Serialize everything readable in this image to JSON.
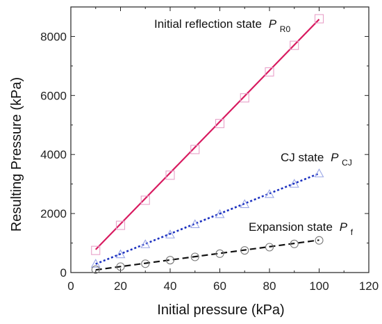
{
  "chart_data": {
    "type": "scatter",
    "xlabel": "Initial pressure (kPa)",
    "ylabel": "Resulting Pressure (kPa)",
    "xlim": [
      0,
      120
    ],
    "ylim": [
      0,
      9000
    ],
    "xticks": [
      "0",
      "20",
      "40",
      "60",
      "80",
      "100",
      "120"
    ],
    "yticks": [
      "0",
      "2000",
      "4000",
      "6000",
      "8000"
    ],
    "grid": false,
    "series": [
      {
        "name": "Initial reflection state",
        "symbol": "P",
        "subscript": "R0",
        "marker": "square",
        "marker_color": "#e8a0c8",
        "line_color": "#d81b60",
        "line_style": "solid",
        "x": [
          10,
          20,
          30,
          40,
          50,
          60,
          70,
          80,
          90,
          100
        ],
        "values": [
          750,
          1600,
          2450,
          3300,
          4170,
          5050,
          5920,
          6800,
          7700,
          8600
        ],
        "fit": [
          [
            10,
            780
          ],
          [
            100,
            8580
          ]
        ]
      },
      {
        "name": "CJ state",
        "symbol": "P",
        "subscript": "CJ",
        "marker": "triangle",
        "marker_color": "#9aa6e6",
        "line_color": "#1a2fbf",
        "line_style": "dotted",
        "x": [
          10,
          20,
          30,
          40,
          50,
          60,
          70,
          80,
          90,
          100
        ],
        "values": [
          300,
          620,
          960,
          1290,
          1640,
          1980,
          2320,
          2660,
          3010,
          3360
        ],
        "fit": [
          [
            10,
            290
          ],
          [
            100,
            3360
          ]
        ]
      },
      {
        "name": "Expansion state",
        "symbol": "P",
        "subscript": "f",
        "marker": "circle",
        "marker_color": "#777777",
        "line_color": "#111111",
        "line_style": "dashed",
        "x": [
          10,
          20,
          30,
          40,
          50,
          60,
          70,
          80,
          90,
          100
        ],
        "values": [
          100,
          200,
          300,
          420,
          530,
          640,
          750,
          860,
          970,
          1090
        ],
        "fit": [
          [
            10,
            90
          ],
          [
            100,
            1100
          ]
        ]
      }
    ]
  }
}
